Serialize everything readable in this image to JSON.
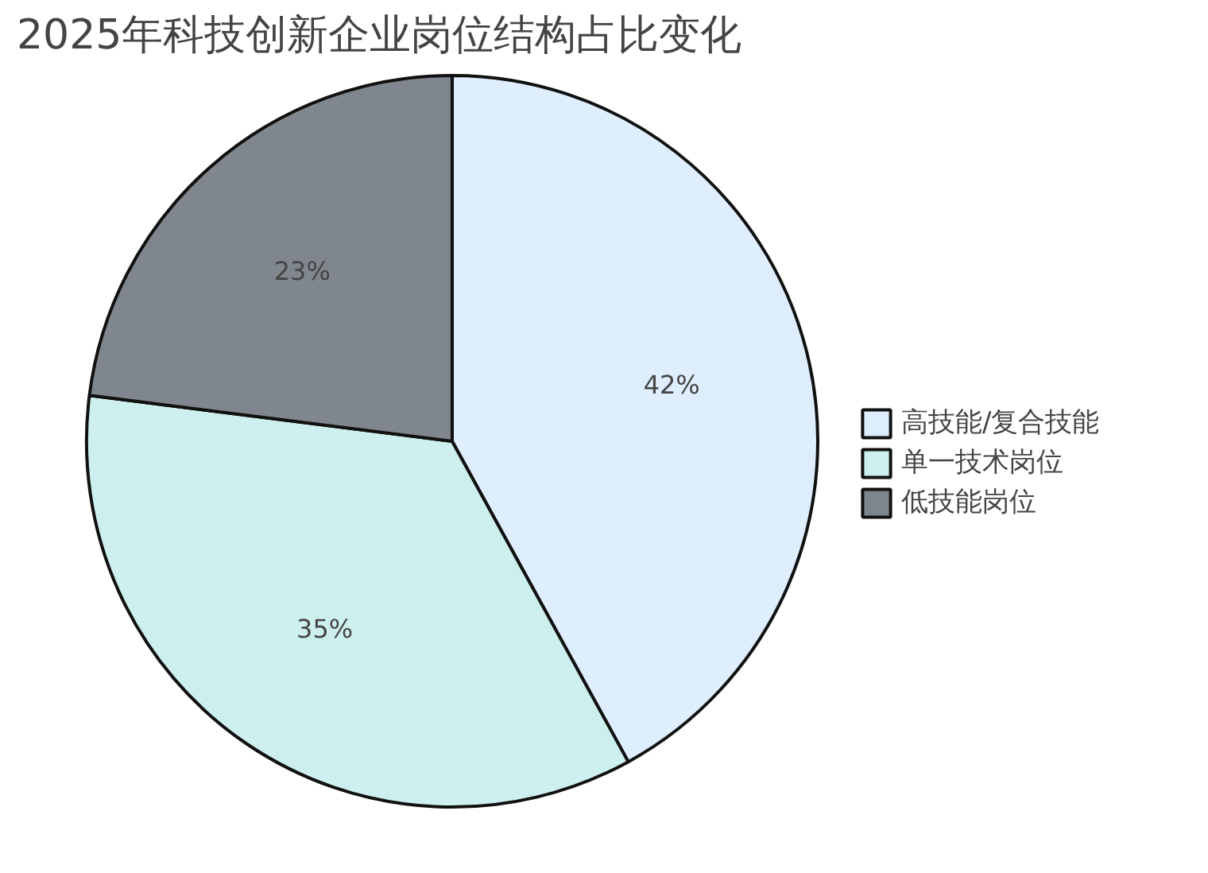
{
  "chart_data": {
    "type": "pie",
    "title": "2025年科技创新企业岗位结构占比变化",
    "categories": [
      "高技能/复合技能",
      "单一技术岗位",
      "低技能岗位"
    ],
    "values": [
      42,
      35,
      23
    ],
    "colors": [
      "#deeefe",
      "#cdf0ee",
      "#80868d"
    ],
    "data_labels": true,
    "value_labels": [
      "42%",
      "35%",
      "23%"
    ],
    "legend": "right"
  }
}
